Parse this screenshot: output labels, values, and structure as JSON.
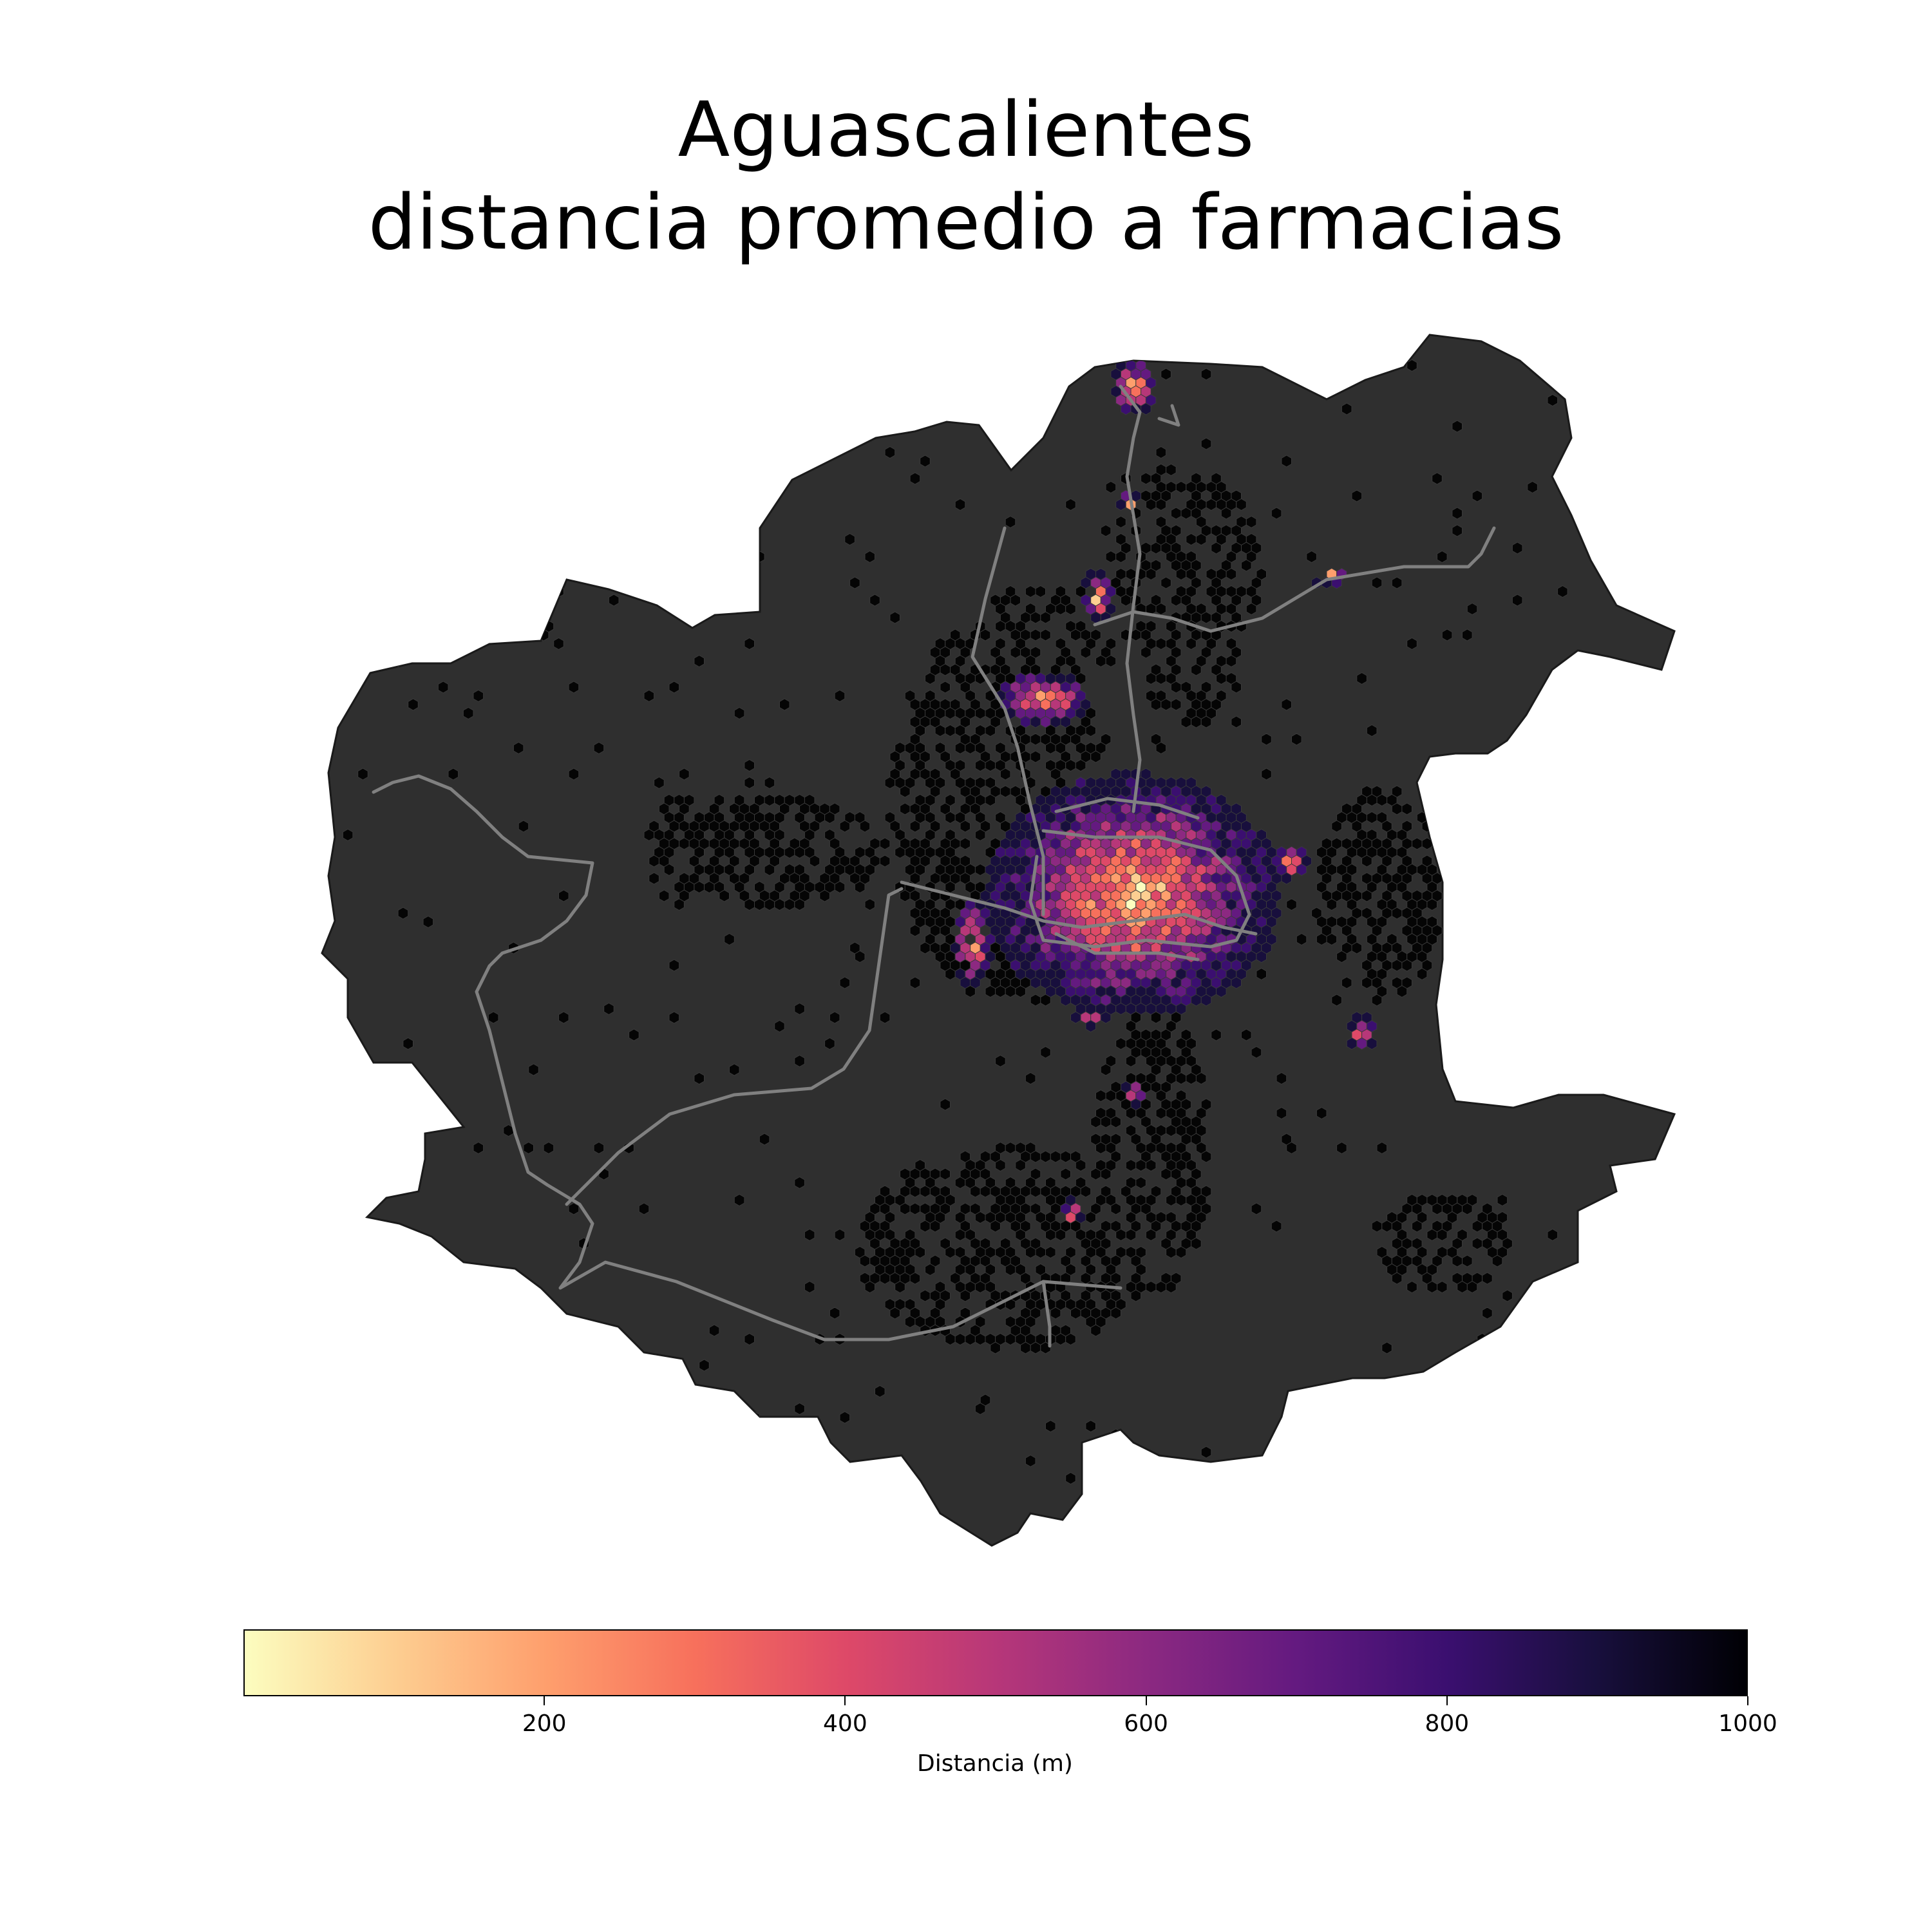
{
  "title": {
    "line1": "Aguascalientes",
    "line2": "distancia promedio a farmacias"
  },
  "map": {
    "region": "Aguascalientes",
    "base_color": "#2f2f2f",
    "road_color": "#808080",
    "hex_outline_color": "#3a3a3a"
  },
  "colorbar": {
    "label": "Distancia (m)",
    "colormap": "magma_r",
    "min": 0,
    "max": 1000,
    "ticks": [
      {
        "value": 200,
        "label": "200"
      },
      {
        "value": 400,
        "label": "400"
      },
      {
        "value": 600,
        "label": "600"
      },
      {
        "value": 800,
        "label": "800"
      },
      {
        "value": 1000,
        "label": "1000"
      }
    ],
    "stops": [
      "#fcfdbf",
      "#fdce91",
      "#fe9f6d",
      "#f7705c",
      "#de4968",
      "#b73779",
      "#8c2981",
      "#641a80",
      "#3b0f70",
      "#180f3d",
      "#000004"
    ]
  }
}
